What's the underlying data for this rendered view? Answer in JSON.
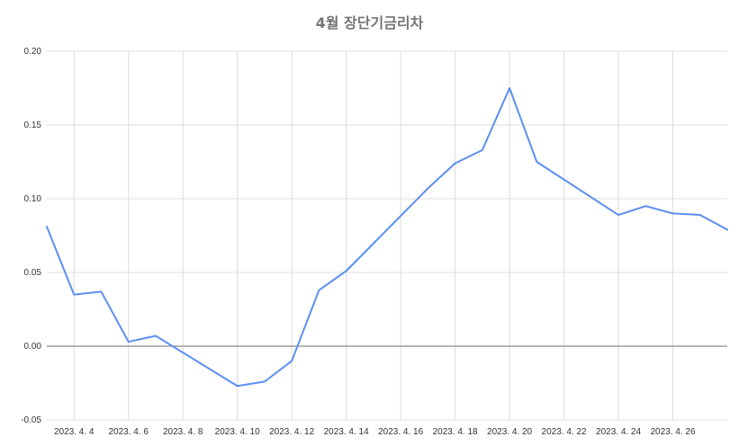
{
  "chart_data": {
    "type": "line",
    "title": "4월 장단기금리차",
    "xlabel": "",
    "ylabel": "",
    "ylim": [
      -0.05,
      0.2
    ],
    "yticks": [
      "0.20",
      "0.15",
      "0.10",
      "0.05",
      "0.00",
      "-0.05"
    ],
    "ytick_values": [
      0.2,
      0.15,
      0.1,
      0.05,
      0.0,
      -0.05
    ],
    "x_range": [
      "2023-04-03",
      "2023-04-28"
    ],
    "xticks": [
      {
        "date": "2023-04-04",
        "label": "2023. 4. 4"
      },
      {
        "date": "2023-04-06",
        "label": "2023. 4. 6"
      },
      {
        "date": "2023-04-08",
        "label": "2023. 4. 8"
      },
      {
        "date": "2023-04-10",
        "label": "2023. 4. 10"
      },
      {
        "date": "2023-04-12",
        "label": "2023. 4. 12"
      },
      {
        "date": "2023-04-14",
        "label": "2023. 4. 14"
      },
      {
        "date": "2023-04-16",
        "label": "2023. 4. 16"
      },
      {
        "date": "2023-04-18",
        "label": "2023. 4. 18"
      },
      {
        "date": "2023-04-20",
        "label": "2023. 4. 20"
      },
      {
        "date": "2023-04-22",
        "label": "2023. 4. 22"
      },
      {
        "date": "2023-04-24",
        "label": "2023. 4. 24"
      },
      {
        "date": "2023-04-26",
        "label": "2023. 4. 26"
      }
    ],
    "grid": true,
    "legend": "none",
    "series": [
      {
        "color": "#5b8ff0",
        "points": [
          {
            "x": "2023-04-03",
            "y": 0.081
          },
          {
            "x": "2023-04-04",
            "y": 0.035
          },
          {
            "x": "2023-04-05",
            "y": 0.037
          },
          {
            "x": "2023-04-06",
            "y": 0.003
          },
          {
            "x": "2023-04-07",
            "y": 0.007
          },
          {
            "x": "2023-04-10",
            "y": -0.027
          },
          {
            "x": "2023-04-11",
            "y": -0.024
          },
          {
            "x": "2023-04-12",
            "y": -0.01
          },
          {
            "x": "2023-04-13",
            "y": 0.038
          },
          {
            "x": "2023-04-14",
            "y": 0.051
          },
          {
            "x": "2023-04-17",
            "y": 0.107
          },
          {
            "x": "2023-04-18",
            "y": 0.124
          },
          {
            "x": "2023-04-19",
            "y": 0.133
          },
          {
            "x": "2023-04-20",
            "y": 0.175
          },
          {
            "x": "2023-04-21",
            "y": 0.125
          },
          {
            "x": "2023-04-24",
            "y": 0.089
          },
          {
            "x": "2023-04-25",
            "y": 0.095
          },
          {
            "x": "2023-04-26",
            "y": 0.09
          },
          {
            "x": "2023-04-27",
            "y": 0.089
          },
          {
            "x": "2023-04-28",
            "y": 0.079
          }
        ]
      }
    ]
  }
}
